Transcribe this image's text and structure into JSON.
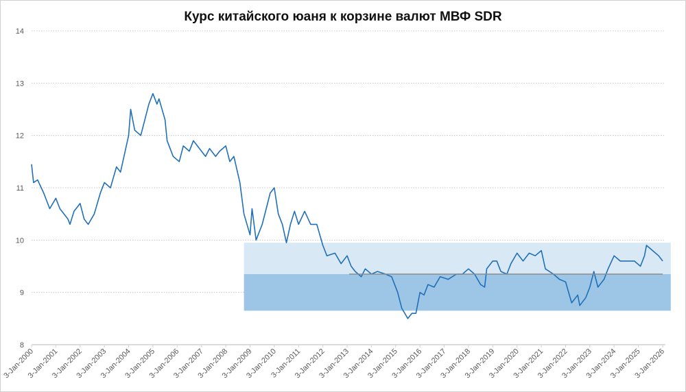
{
  "chart_data": {
    "type": "line",
    "title": "Курс китайского юаня к корзине валют МВФ SDR",
    "xlabel": "",
    "ylabel": "",
    "ylim": [
      8,
      14
    ],
    "yticks": [
      "8",
      "9",
      "10",
      "11",
      "12",
      "13",
      "14"
    ],
    "xlim": [
      "2000-01-03",
      "2026-01-03"
    ],
    "xticks": [
      "3-Jan-2000",
      "3-Jan-2001",
      "3-Jan-2002",
      "3-Jan-2003",
      "3-Jan-2004",
      "3-Jan-2005",
      "3-Jan-2006",
      "3-Jan-2007",
      "3-Jan-2008",
      "3-Jan-2009",
      "3-Jan-2010",
      "3-Jan-2011",
      "3-Jan-2012",
      "3-Jan-2013",
      "3-Jan-2014",
      "3-Jan-2015",
      "3-Jan-2016",
      "3-Jan-2017",
      "3-Jan-2018",
      "3-Jan-2019",
      "3-Jan-2020",
      "3-Jan-2021",
      "3-Jan-2022",
      "3-Jan-2023",
      "3-Jan-2024",
      "3-Jan-2025",
      "3-Jan-2026"
    ],
    "grid": "horizontal dotted",
    "line_color": "#1f6fb8",
    "bands": [
      {
        "from_date": "2008-10",
        "to_date": "2026-05",
        "y_low": 9.35,
        "y_high": 9.95,
        "color": "#d9e8f5"
      },
      {
        "from_date": "2008-10",
        "to_date": "2026-05",
        "y_low": 8.65,
        "y_high": 9.35,
        "color": "#9dc6e6"
      }
    ],
    "reference_line": {
      "value": 9.35,
      "from_date": "2013-02",
      "to_date": "2026-01",
      "color": "#8c8c8c"
    },
    "series": [
      {
        "points": [
          [
            "2000-01",
            11.45
          ],
          [
            "2000-02",
            11.1
          ],
          [
            "2000-04",
            11.15
          ],
          [
            "2000-07",
            10.9
          ],
          [
            "2000-10",
            10.6
          ],
          [
            "2001-01",
            10.8
          ],
          [
            "2001-03",
            10.6
          ],
          [
            "2001-07",
            10.4
          ],
          [
            "2001-08",
            10.3
          ],
          [
            "2001-10",
            10.55
          ],
          [
            "2002-01",
            10.7
          ],
          [
            "2002-03",
            10.4
          ],
          [
            "2002-05",
            10.3
          ],
          [
            "2002-08",
            10.5
          ],
          [
            "2002-11",
            10.9
          ],
          [
            "2003-01",
            11.1
          ],
          [
            "2003-04",
            11.0
          ],
          [
            "2003-07",
            11.4
          ],
          [
            "2003-09",
            11.3
          ],
          [
            "2004-01",
            12.0
          ],
          [
            "2004-02",
            12.5
          ],
          [
            "2004-04",
            12.1
          ],
          [
            "2004-07",
            12.0
          ],
          [
            "2004-09",
            12.3
          ],
          [
            "2004-11",
            12.6
          ],
          [
            "2005-01",
            12.8
          ],
          [
            "2005-03",
            12.6
          ],
          [
            "2005-04",
            12.7
          ],
          [
            "2005-07",
            12.3
          ],
          [
            "2005-08",
            11.9
          ],
          [
            "2005-11",
            11.6
          ],
          [
            "2006-02",
            11.5
          ],
          [
            "2006-04",
            11.8
          ],
          [
            "2006-07",
            11.7
          ],
          [
            "2006-09",
            11.9
          ],
          [
            "2007-01",
            11.7
          ],
          [
            "2007-03",
            11.6
          ],
          [
            "2007-05",
            11.75
          ],
          [
            "2007-08",
            11.6
          ],
          [
            "2007-10",
            11.7
          ],
          [
            "2008-01",
            11.8
          ],
          [
            "2008-03",
            11.5
          ],
          [
            "2008-05",
            11.6
          ],
          [
            "2008-08",
            11.1
          ],
          [
            "2008-10",
            10.5
          ],
          [
            "2009-01",
            10.1
          ],
          [
            "2009-02",
            10.6
          ],
          [
            "2009-04",
            10.0
          ],
          [
            "2009-07",
            10.3
          ],
          [
            "2009-09",
            10.6
          ],
          [
            "2009-11",
            10.9
          ],
          [
            "2010-01",
            11.0
          ],
          [
            "2010-03",
            10.5
          ],
          [
            "2010-05",
            10.3
          ],
          [
            "2010-07",
            9.95
          ],
          [
            "2010-09",
            10.3
          ],
          [
            "2010-11",
            10.55
          ],
          [
            "2011-01",
            10.3
          ],
          [
            "2011-04",
            10.55
          ],
          [
            "2011-07",
            10.3
          ],
          [
            "2011-10",
            10.3
          ],
          [
            "2012-01",
            9.9
          ],
          [
            "2012-03",
            9.7
          ],
          [
            "2012-07",
            9.75
          ],
          [
            "2012-10",
            9.55
          ],
          [
            "2013-01",
            9.7
          ],
          [
            "2013-03",
            9.5
          ],
          [
            "2013-05",
            9.4
          ],
          [
            "2013-08",
            9.3
          ],
          [
            "2013-10",
            9.45
          ],
          [
            "2014-01",
            9.35
          ],
          [
            "2014-04",
            9.4
          ],
          [
            "2014-08",
            9.35
          ],
          [
            "2014-11",
            9.3
          ],
          [
            "2015-02",
            9.0
          ],
          [
            "2015-04",
            8.7
          ],
          [
            "2015-07",
            8.5
          ],
          [
            "2015-09",
            8.6
          ],
          [
            "2015-11",
            8.6
          ],
          [
            "2016-01",
            9.0
          ],
          [
            "2016-03",
            8.95
          ],
          [
            "2016-05",
            9.15
          ],
          [
            "2016-08",
            9.1
          ],
          [
            "2016-11",
            9.3
          ],
          [
            "2017-03",
            9.25
          ],
          [
            "2017-07",
            9.35
          ],
          [
            "2017-10",
            9.35
          ],
          [
            "2018-01",
            9.45
          ],
          [
            "2018-04",
            9.35
          ],
          [
            "2018-07",
            9.15
          ],
          [
            "2018-09",
            9.1
          ],
          [
            "2018-10",
            9.45
          ],
          [
            "2019-01",
            9.6
          ],
          [
            "2019-03",
            9.6
          ],
          [
            "2019-05",
            9.4
          ],
          [
            "2019-08",
            9.35
          ],
          [
            "2019-10",
            9.55
          ],
          [
            "2020-01",
            9.75
          ],
          [
            "2020-04",
            9.6
          ],
          [
            "2020-07",
            9.75
          ],
          [
            "2020-10",
            9.7
          ],
          [
            "2021-01",
            9.8
          ],
          [
            "2021-03",
            9.45
          ],
          [
            "2021-07",
            9.35
          ],
          [
            "2021-10",
            9.25
          ],
          [
            "2022-01",
            9.2
          ],
          [
            "2022-04",
            8.8
          ],
          [
            "2022-07",
            8.95
          ],
          [
            "2022-08",
            8.75
          ],
          [
            "2022-11",
            8.9
          ],
          [
            "2023-01",
            9.1
          ],
          [
            "2023-03",
            9.4
          ],
          [
            "2023-05",
            9.1
          ],
          [
            "2023-08",
            9.25
          ],
          [
            "2023-10",
            9.45
          ],
          [
            "2024-01",
            9.7
          ],
          [
            "2024-04",
            9.6
          ],
          [
            "2024-08",
            9.6
          ],
          [
            "2024-11",
            9.6
          ],
          [
            "2025-02",
            9.5
          ],
          [
            "2025-04",
            9.7
          ],
          [
            "2025-05",
            9.9
          ],
          [
            "2025-08",
            9.8
          ],
          [
            "2025-11",
            9.7
          ],
          [
            "2026-01",
            9.6
          ]
        ]
      }
    ]
  }
}
